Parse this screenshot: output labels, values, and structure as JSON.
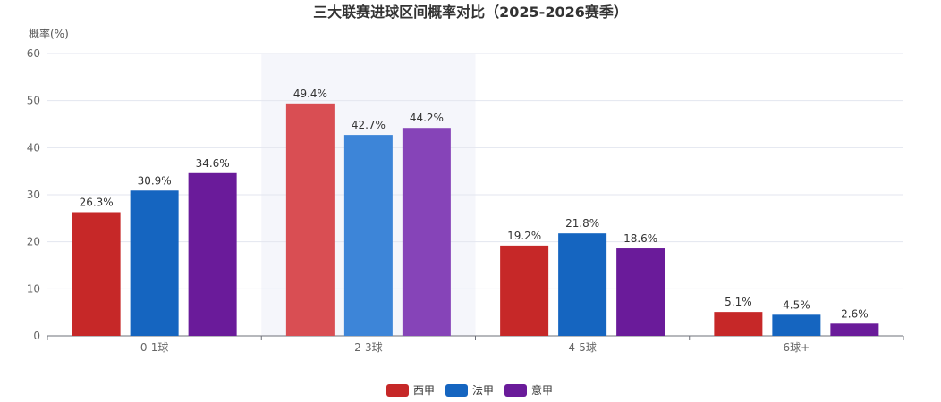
{
  "chart_data": {
    "type": "bar",
    "title": "三大联赛进球区间概率对比（2025-2026赛季）",
    "ylabel": "概率(%)",
    "xlabel": "",
    "ylim": [
      0,
      60
    ],
    "yticks": [
      0,
      10,
      20,
      30,
      40,
      50,
      60
    ],
    "categories": [
      "0-1球",
      "2-3球",
      "4-5球",
      "6球+"
    ],
    "highlighted_category": "2-3球",
    "grid": true,
    "legend_position": "bottom-center",
    "series": [
      {
        "name": "西甲",
        "color": "#c62828",
        "highlight_color": "#d94e53",
        "values": [
          26.3,
          49.4,
          19.2,
          5.1
        ],
        "labels": [
          "26.3%",
          "49.4%",
          "19.2%",
          "5.1%"
        ]
      },
      {
        "name": "法甲",
        "color": "#1565c0",
        "highlight_color": "#3d85d8",
        "values": [
          30.9,
          42.7,
          21.8,
          4.5
        ],
        "labels": [
          "30.9%",
          "42.7%",
          "21.8%",
          "4.5%"
        ]
      },
      {
        "name": "意甲",
        "color": "#6a1b9a",
        "highlight_color": "#8644b8",
        "values": [
          34.6,
          44.2,
          18.6,
          2.6
        ],
        "labels": [
          "34.6%",
          "44.2%",
          "18.6%",
          "2.6%"
        ]
      }
    ]
  }
}
